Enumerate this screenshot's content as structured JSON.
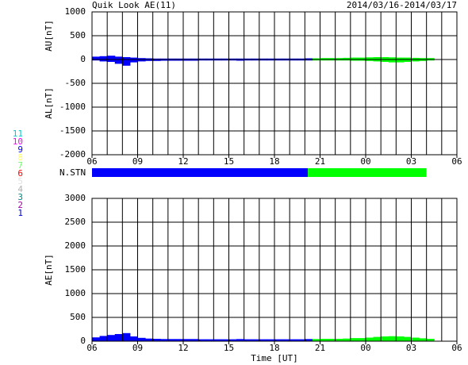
{
  "chart_data": [
    {
      "type": "bar",
      "title": "Quik Look AE(11)",
      "subtitle": "2014/03/16-2014/03/17",
      "ylabels": [
        "AU[nT]",
        "AL[nT]"
      ],
      "xlim": [
        6,
        30
      ],
      "xticks": [
        {
          "value": 6,
          "label": "06"
        },
        {
          "value": 9,
          "label": "09"
        },
        12,
        15,
        18,
        21,
        {
          "value": 24,
          "label": "00"
        },
        {
          "value": 27,
          "label": "03"
        },
        {
          "value": 30,
          "label": "06"
        }
      ],
      "xgrid": [
        6,
        7,
        8,
        9,
        10,
        11,
        12,
        13,
        14,
        15,
        16,
        17,
        18,
        19,
        20,
        21,
        22,
        23,
        24,
        25,
        26,
        27,
        28,
        29,
        30
      ],
      "ylim": [
        -2000,
        1000
      ],
      "yticks": [
        1000,
        500,
        0,
        -500,
        -1000,
        -1500,
        -2000
      ],
      "series": [
        {
          "color": "#0000ff",
          "x": [
            6,
            6.5,
            7,
            7.5,
            8,
            8.5,
            9,
            9.5,
            10,
            10.5,
            11,
            11.5,
            12,
            12.5,
            13,
            13.5,
            14,
            14.5,
            15,
            15.5,
            16,
            16.5,
            17,
            17.5,
            18,
            18.5,
            19,
            19.5,
            20
          ],
          "values": [
            60,
            70,
            80,
            60,
            50,
            40,
            30,
            25,
            20,
            20,
            20,
            20,
            20,
            20,
            20,
            20,
            20,
            20,
            20,
            20,
            20,
            20,
            20,
            20,
            20,
            20,
            20,
            20,
            25
          ],
          "lows": [
            -20,
            -40,
            -50,
            -90,
            -130,
            -60,
            -40,
            -30,
            -30,
            -25,
            -25,
            -25,
            -25,
            -25,
            -20,
            -20,
            -20,
            -20,
            -20,
            -25,
            -20,
            -20,
            -20,
            -20,
            -20,
            -20,
            -20,
            -20,
            -20
          ]
        },
        {
          "color": "#00ff00",
          "x": [
            20.5,
            21,
            21.5,
            22,
            22.5,
            23,
            23.5,
            24,
            24.5,
            25,
            25.5,
            26,
            26.5,
            27,
            27.5,
            28
          ],
          "values": [
            25,
            30,
            30,
            30,
            35,
            40,
            40,
            45,
            50,
            50,
            45,
            40,
            40,
            35,
            30,
            30
          ],
          "lows": [
            -20,
            -20,
            -20,
            -20,
            -20,
            -25,
            -25,
            -30,
            -40,
            -50,
            -60,
            -60,
            -50,
            -40,
            -30,
            -20
          ]
        }
      ]
    },
    {
      "type": "bar",
      "ylabels": [
        "AE[nT]"
      ],
      "xlabel": "Time [UT]",
      "xlim": [
        6,
        30
      ],
      "xticks": [
        {
          "value": 6,
          "label": "06"
        },
        {
          "value": 9,
          "label": "09"
        },
        12,
        15,
        18,
        21,
        {
          "value": 24,
          "label": "00"
        },
        {
          "value": 27,
          "label": "03"
        },
        {
          "value": 30,
          "label": "06"
        }
      ],
      "xgrid": [
        6,
        7,
        8,
        9,
        10,
        11,
        12,
        13,
        14,
        15,
        16,
        17,
        18,
        19,
        20,
        21,
        22,
        23,
        24,
        25,
        26,
        27,
        28,
        29,
        30
      ],
      "ylim": [
        0,
        3000
      ],
      "yticks": [
        3000,
        2500,
        2000,
        1500,
        1000,
        500,
        0
      ],
      "series": [
        {
          "color": "#0000ff",
          "x": [
            6,
            6.5,
            7,
            7.5,
            8,
            8.5,
            9,
            9.5,
            10,
            10.5,
            11,
            11.5,
            12,
            12.5,
            13,
            13.5,
            14,
            14.5,
            15,
            15.5,
            16,
            16.5,
            17,
            17.5,
            18,
            18.5,
            19,
            19.5,
            20
          ],
          "values": [
            80,
            110,
            130,
            150,
            170,
            100,
            70,
            55,
            50,
            45,
            45,
            45,
            45,
            45,
            40,
            40,
            40,
            40,
            40,
            45,
            40,
            40,
            40,
            40,
            40,
            40,
            40,
            40,
            45
          ]
        },
        {
          "color": "#00ff00",
          "x": [
            20.5,
            21,
            21.5,
            22,
            22.5,
            23,
            23.5,
            24,
            24.5,
            25,
            25.5,
            26,
            26.5,
            27,
            27.5,
            28
          ],
          "values": [
            45,
            50,
            50,
            50,
            55,
            65,
            65,
            75,
            90,
            100,
            105,
            100,
            90,
            75,
            60,
            50
          ]
        }
      ]
    }
  ],
  "n_stn": {
    "label": "N.STN",
    "segments": [
      {
        "color": "#0000ff",
        "start": 6,
        "end": 20.2
      },
      {
        "color": "#00ff00",
        "start": 20.2,
        "end": 28
      }
    ]
  },
  "stations": [
    {
      "label": "11",
      "color": "#00cccc"
    },
    {
      "label": "10",
      "color": "#ff00ff"
    },
    {
      "label": "9",
      "color": "#0000ff"
    },
    {
      "label": "8",
      "color": "#ffff66"
    },
    {
      "label": "7",
      "color": "#66ff66"
    },
    {
      "label": "6",
      "color": "#ff0000"
    },
    {
      "label": "5",
      "color": "#e0e0e0"
    },
    {
      "label": "4",
      "color": "#b0b0b0"
    },
    {
      "label": "3",
      "color": "#008888"
    },
    {
      "label": "2",
      "color": "#aa00aa"
    },
    {
      "label": "1",
      "color": "#0000cc"
    }
  ]
}
